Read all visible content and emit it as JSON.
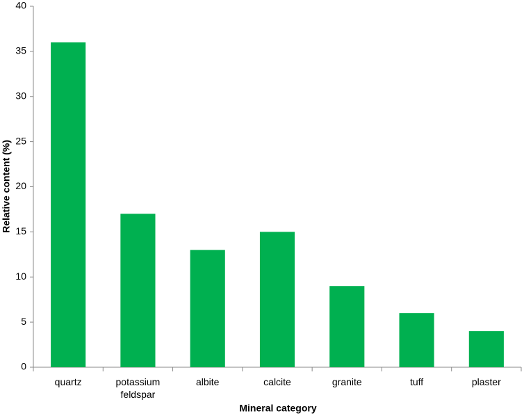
{
  "chart_data": {
    "type": "bar",
    "categories": [
      "quartz",
      "potassium feldspar",
      "albite",
      "calcite",
      "granite",
      "tuff",
      "plaster"
    ],
    "values": [
      36,
      17,
      13,
      15,
      9,
      6,
      4
    ],
    "color": "#00b050",
    "xlabel": "Mineral category",
    "ylabel": "Relative content (%)",
    "ylim": [
      0,
      40
    ],
    "yticks": [
      0,
      5,
      10,
      15,
      20,
      25,
      30,
      35,
      40
    ],
    "grid": false
  }
}
